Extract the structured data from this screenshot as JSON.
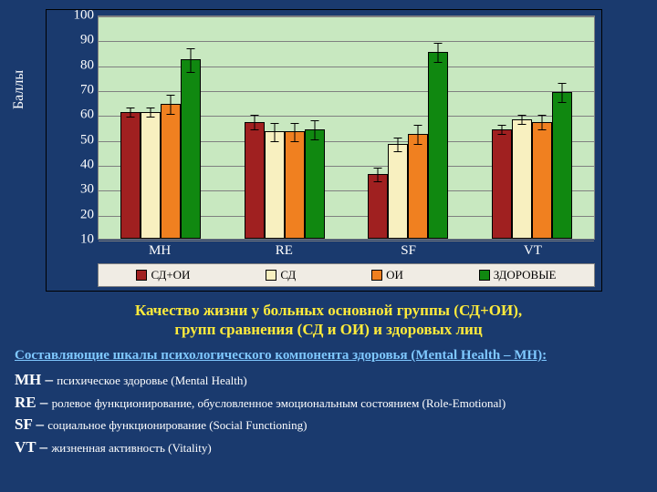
{
  "chart": {
    "type": "bar",
    "y_label": "Баллы",
    "plot_background": "#c8e8c0",
    "grid_color": "#808080",
    "bar_border": "#000000",
    "ylim": [
      10,
      100
    ],
    "ytick_step": 10,
    "yticks": [
      10,
      20,
      30,
      40,
      50,
      60,
      70,
      80,
      90,
      100
    ],
    "categories": [
      "MH",
      "RE",
      "SF",
      "VT"
    ],
    "series": [
      {
        "name": "СД+ОИ",
        "color": "#a02020"
      },
      {
        "name": "СД",
        "color": "#f8f0c0"
      },
      {
        "name": "ОИ",
        "color": "#f08020"
      },
      {
        "name": "ЗДОРОВЫЕ",
        "color": "#108810"
      }
    ],
    "data": {
      "MH": [
        61,
        61,
        64,
        82
      ],
      "RE": [
        57,
        53,
        53,
        54
      ],
      "SF": [
        36,
        48,
        52,
        85
      ],
      "VT": [
        54,
        58,
        57,
        69
      ]
    },
    "errors": {
      "MH": [
        2,
        2,
        4,
        5
      ],
      "RE": [
        3,
        4,
        4,
        4
      ],
      "SF": [
        3,
        3,
        4,
        4
      ],
      "VT": [
        2,
        2,
        3,
        4
      ]
    },
    "legend_background": "#f0ece4"
  },
  "caption": {
    "line1": "Качество жизни у больных основной группы (СД+ОИ),",
    "line2": "групп сравнения (СД и ОИ) и здоровых лиц",
    "color": "#ffeb3b"
  },
  "subheading": {
    "text": "Составляющие шкалы психологического компонента здоровья (Mental Health – MH):",
    "color": "#7fc8ff"
  },
  "definitions": [
    {
      "abbr": "MH",
      "desc": "психическое здоровье (Mental Health)"
    },
    {
      "abbr": "RE",
      "desc": "ролевое функционирование, обусловленное эмоциональным состоянием (Role-Emotional)"
    },
    {
      "abbr": "SF",
      "desc": "социальное функционирование (Social Functioning)"
    },
    {
      "abbr": "VT",
      "desc": "жизненная активность (Vitality)"
    }
  ]
}
